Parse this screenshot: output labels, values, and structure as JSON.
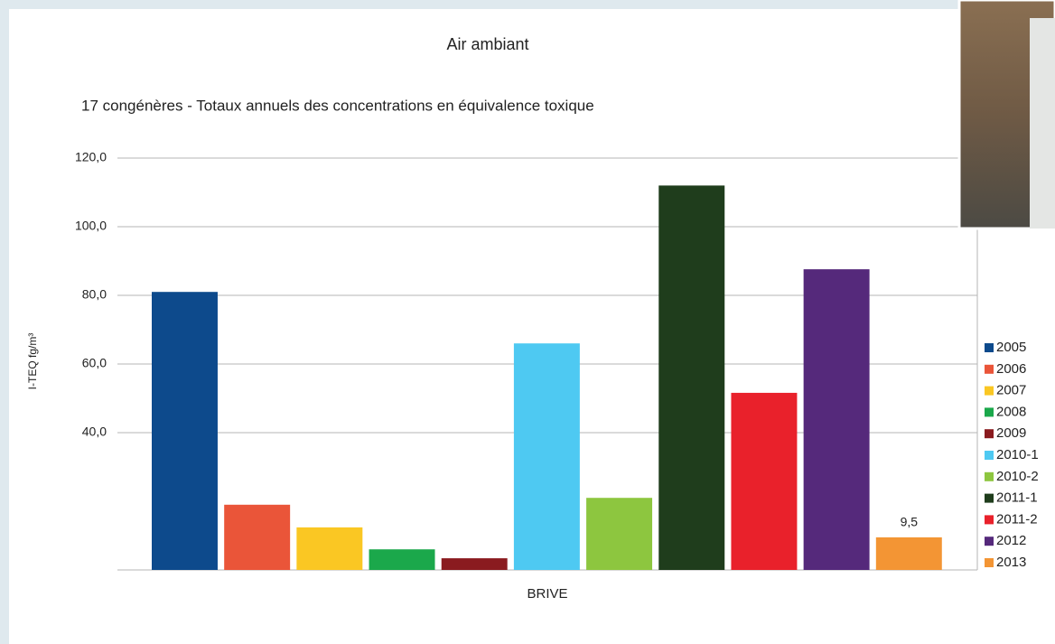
{
  "chart_data": {
    "type": "bar",
    "title": "Air ambiant",
    "subtitle": "17 congénères - Totaux annuels des concentrations en équivalence toxique",
    "y_label": "I-TEQ fg/m³",
    "categories": [
      "BRIVE"
    ],
    "series": [
      {
        "name": "2005",
        "color": "#0d4a8c",
        "values": [
          81
        ]
      },
      {
        "name": "2006",
        "color": "#ea5539",
        "values": [
          19
        ]
      },
      {
        "name": "2007",
        "color": "#fac723",
        "values": [
          12.4
        ]
      },
      {
        "name": "2008",
        "color": "#1ba84b",
        "values": [
          6
        ]
      },
      {
        "name": "2009",
        "color": "#8a1b1f",
        "values": [
          3.4
        ]
      },
      {
        "name": "2010-1",
        "color": "#4ec9f2",
        "values": [
          66
        ]
      },
      {
        "name": "2010-2",
        "color": "#8dc63f",
        "values": [
          21
        ]
      },
      {
        "name": "2011-1",
        "color": "#1f3d1c",
        "values": [
          112
        ]
      },
      {
        "name": "2011-2",
        "color": "#e9212b",
        "values": [
          51.6
        ]
      },
      {
        "name": "2012",
        "color": "#55297b",
        "values": [
          87.6
        ]
      },
      {
        "name": "2013",
        "color": "#f39534",
        "values": [
          9.5
        ],
        "value_labels": [
          "9,5"
        ]
      }
    ],
    "ylim": [
      0,
      120
    ],
    "yticks": [
      {
        "value": 40,
        "label": "40,0"
      },
      {
        "value": 60,
        "label": "60,0"
      },
      {
        "value": 80,
        "label": "80,0"
      },
      {
        "value": 100,
        "label": "100,0"
      },
      {
        "value": 120,
        "label": "120,0"
      }
    ],
    "grid": true,
    "legend": "right"
  }
}
